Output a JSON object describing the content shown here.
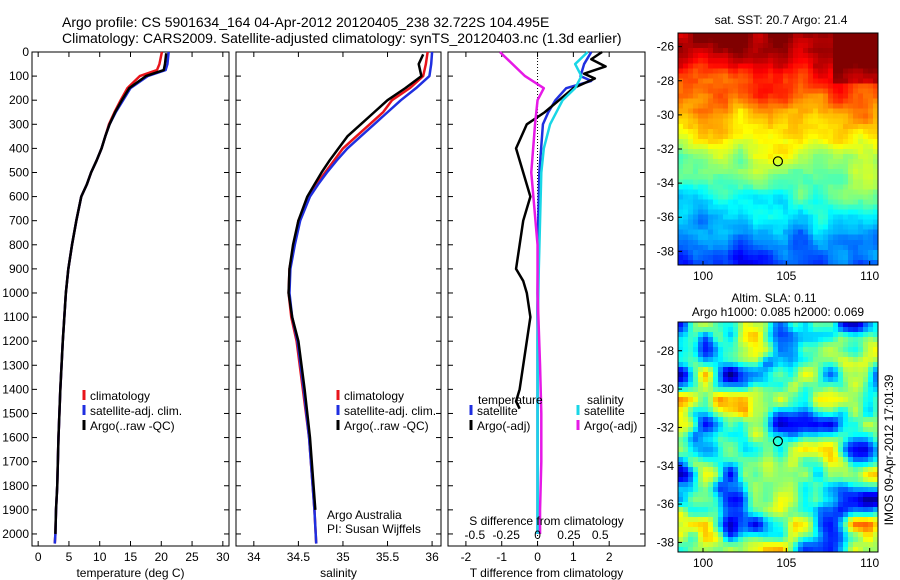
{
  "header": {
    "line1": "Argo profile: CS 5901634_164 04-Apr-2012 20120405_238 32.722S 104.495E",
    "line2": "Climatology: CARS2009. Satellite-adjusted climatology: synTS_20120403.nc (1.3d earlier)"
  },
  "side_text": "IMOS 09-Apr-2012 17:01:39",
  "colors": {
    "climatology": "#e8141b",
    "satellite": "#1f2fe0",
    "argo": "#000000",
    "sat_salinity": "#19d6e6",
    "argo_salinity": "#e619e6"
  },
  "chart_data": [
    {
      "type": "line",
      "id": "temperature",
      "xlabel": "temperature (deg C)",
      "ylabel": "",
      "xlim": [
        -1,
        31
      ],
      "ylim": [
        0,
        2050
      ],
      "xticks": [
        0,
        5,
        10,
        15,
        20,
        25,
        30
      ],
      "yticks": [
        0,
        100,
        200,
        300,
        400,
        500,
        600,
        700,
        800,
        900,
        1000,
        1100,
        1200,
        1300,
        1400,
        1500,
        1600,
        1700,
        1800,
        1900,
        2000
      ],
      "legend": [
        "climatology",
        "satellite-adj. clim.",
        "Argo(..raw -QC)"
      ],
      "series": [
        {
          "name": "climatology",
          "color": "#e8141b",
          "x": [
            20.1,
            19.7,
            19.3,
            16.5,
            14.5,
            13.4,
            12.4,
            11.5,
            10.9,
            10.3,
            9.5,
            8.6,
            7.9,
            7.0,
            6.2,
            5.5,
            4.9,
            4.5,
            4.0,
            3.6,
            3.3,
            3.1,
            2.9,
            2.8,
            2.7
          ],
          "y": [
            0,
            50,
            75,
            100,
            150,
            200,
            250,
            300,
            350,
            400,
            450,
            500,
            550,
            600,
            700,
            800,
            900,
            1000,
            1200,
            1400,
            1600,
            1800,
            1900,
            2000,
            2040
          ]
        },
        {
          "name": "satellite-adj. clim.",
          "color": "#1f2fe0",
          "x": [
            21.2,
            21.0,
            20.7,
            17.8,
            15.0,
            13.8,
            12.6,
            11.6,
            10.9,
            10.3,
            9.5,
            8.6,
            7.9,
            7.0,
            6.2,
            5.5,
            4.9,
            4.5,
            4.0,
            3.6,
            3.3,
            3.1,
            2.9,
            2.8,
            2.7
          ],
          "y": [
            0,
            50,
            75,
            100,
            150,
            200,
            250,
            300,
            350,
            400,
            450,
            500,
            550,
            600,
            700,
            800,
            900,
            1000,
            1200,
            1400,
            1600,
            1800,
            1900,
            2000,
            2040
          ]
        },
        {
          "name": "Argo(..raw -QC)",
          "color": "#000000",
          "x": [
            20.8,
            20.6,
            20.4,
            17.5,
            14.8,
            13.6,
            12.5,
            11.6,
            10.9,
            10.3,
            9.5,
            8.6,
            7.9,
            7.0,
            6.2,
            5.5,
            4.9,
            4.5,
            4.0,
            3.6,
            3.3,
            3.1,
            2.9,
            2.8
          ],
          "y": [
            5,
            50,
            75,
            100,
            150,
            200,
            250,
            300,
            350,
            400,
            450,
            500,
            550,
            600,
            700,
            800,
            900,
            1000,
            1200,
            1400,
            1600,
            1800,
            1900,
            2000
          ]
        }
      ]
    },
    {
      "type": "line",
      "id": "salinity",
      "xlabel": "salinity",
      "xlim": [
        33.8,
        36.1
      ],
      "ylim": [
        0,
        2050
      ],
      "xticks": [
        34,
        34.5,
        35,
        35.5,
        36
      ],
      "legend": [
        "climatology",
        "satellite-adj. clim.",
        "Argo(..raw -QC)"
      ],
      "annotation": [
        "Argo Australia",
        "PI: Susan Wijffels"
      ],
      "series": [
        {
          "name": "climatology",
          "color": "#e8141b",
          "x": [
            35.95,
            35.93,
            35.9,
            35.75,
            35.55,
            35.45,
            35.3,
            35.15,
            35.0,
            34.9,
            34.8,
            34.7,
            34.62,
            34.5,
            34.45,
            34.4,
            34.39,
            34.42,
            34.48,
            34.55,
            34.62,
            34.66,
            34.68,
            34.7
          ],
          "y": [
            0,
            50,
            100,
            150,
            200,
            250,
            300,
            350,
            400,
            450,
            500,
            550,
            600,
            700,
            800,
            900,
            1000,
            1100,
            1200,
            1400,
            1600,
            1800,
            1900,
            2040
          ]
        },
        {
          "name": "satellite-adj. clim.",
          "color": "#1f2fe0",
          "x": [
            36.0,
            35.99,
            35.97,
            35.82,
            35.65,
            35.5,
            35.35,
            35.2,
            35.05,
            34.93,
            34.82,
            34.72,
            34.63,
            34.52,
            34.46,
            34.41,
            34.4,
            34.43,
            34.49,
            34.56,
            34.62,
            34.66,
            34.68,
            34.7
          ],
          "y": [
            0,
            50,
            100,
            150,
            200,
            250,
            300,
            350,
            400,
            450,
            500,
            550,
            600,
            700,
            800,
            900,
            1000,
            1100,
            1200,
            1400,
            1600,
            1800,
            1900,
            2040
          ]
        },
        {
          "name": "Argo(..raw -QC)",
          "color": "#000000",
          "x": [
            35.9,
            35.85,
            35.88,
            35.7,
            35.5,
            35.35,
            35.2,
            35.05,
            34.95,
            34.85,
            34.76,
            34.68,
            34.6,
            34.5,
            34.44,
            34.4,
            34.39,
            34.43,
            34.5,
            34.57,
            34.63,
            34.67,
            34.69
          ],
          "y": [
            10,
            50,
            100,
            150,
            200,
            250,
            300,
            350,
            400,
            450,
            500,
            550,
            600,
            700,
            800,
            900,
            1000,
            1100,
            1200,
            1400,
            1600,
            1800,
            1900
          ]
        }
      ]
    },
    {
      "type": "line",
      "id": "difference",
      "xlabel": "T difference from climatology",
      "xlabel_top": "S difference from climatology",
      "xlim": [
        -2.5,
        3.0
      ],
      "ylim": [
        0,
        2050
      ],
      "xticks": [
        -2,
        -1,
        0,
        1,
        2
      ],
      "sticks": [
        -0.5,
        -0.25,
        0,
        0.25,
        0.5
      ],
      "sticks_labels": [
        "-0.5",
        "-0.25",
        "0",
        "0.25",
        "0.5"
      ],
      "legend_titles": [
        "temperature",
        "salinity"
      ],
      "legend": [
        "satellite",
        "Argo(-adj)",
        "satellite",
        "Argo(-adj)"
      ],
      "series": [
        {
          "name": "satellite",
          "group": "temperature",
          "color": "#1f2fe0",
          "x": [
            1.5,
            1.3,
            1.2,
            1.5,
            0.8,
            0.5,
            0.3,
            0.15,
            0.1,
            0.05,
            0.02,
            0.0,
            0.0,
            0.0,
            0.0
          ],
          "y": [
            0,
            50,
            100,
            120,
            150,
            200,
            250,
            300,
            400,
            500,
            700,
            1000,
            1300,
            1600,
            2000
          ]
        },
        {
          "name": "Argo(-adj)",
          "group": "temperature",
          "color": "#000000",
          "x": [
            1.8,
            1.5,
            1.9,
            1.3,
            1.6,
            1.0,
            0.6,
            0.2,
            -0.3,
            -0.6,
            -0.4,
            -0.2,
            -0.3,
            -0.4,
            -0.5,
            -0.6,
            -0.4,
            -0.3,
            -0.2,
            -0.3,
            -0.4,
            -0.5,
            -0.6,
            -0.5
          ],
          "y": [
            0,
            30,
            60,
            90,
            110,
            150,
            200,
            250,
            300,
            400,
            500,
            600,
            650,
            700,
            800,
            900,
            950,
            1000,
            1100,
            1200,
            1300,
            1400,
            1450,
            1480
          ]
        },
        {
          "name": "satellite",
          "group": "salinity",
          "color": "#19d6e6",
          "x": [
            0.4,
            0.3,
            0.35,
            0.3,
            0.2,
            0.1,
            0.05,
            0.03,
            0.02,
            0.01,
            0.0,
            0.0,
            0.0,
            0.0
          ],
          "y": [
            0,
            50,
            100,
            150,
            200,
            300,
            400,
            500,
            700,
            900,
            1200,
            1500,
            1800,
            2000
          ]
        },
        {
          "name": "Argo(-adj)",
          "group": "salinity",
          "color": "#e619e6",
          "x": [
            -0.3,
            -0.1,
            0.05,
            0.0,
            -0.02,
            -0.05,
            0.0,
            0.0,
            0.02,
            0.03,
            0.03,
            0.02,
            0.02
          ],
          "y": [
            0,
            100,
            150,
            200,
            300,
            500,
            800,
            1000,
            1300,
            1500,
            1700,
            1900,
            2000
          ]
        }
      ]
    },
    {
      "type": "heatmap",
      "id": "sst-map",
      "title": "sat. SST: 20.7 Argo: 21.4",
      "xlim": [
        98.5,
        110.5
      ],
      "ylim": [
        -38.8,
        -25.2
      ],
      "xticks": [
        100,
        105,
        110
      ],
      "yticks": [
        -26,
        -28,
        -30,
        -32,
        -34,
        -36,
        -38
      ],
      "point": {
        "lon": 104.495,
        "lat": -32.722
      }
    },
    {
      "type": "heatmap",
      "id": "sla-map",
      "title": "Altim. SLA: 0.11",
      "subtitle": "Argo h1000: 0.085 h2000: 0.069",
      "xlim": [
        98.5,
        110.5
      ],
      "ylim": [
        -38.5,
        -26.5
      ],
      "xticks": [
        100,
        105,
        110
      ],
      "yticks": [
        -28,
        -30,
        -32,
        -34,
        -36,
        -38
      ],
      "point": {
        "lon": 104.495,
        "lat": -32.722
      }
    }
  ]
}
